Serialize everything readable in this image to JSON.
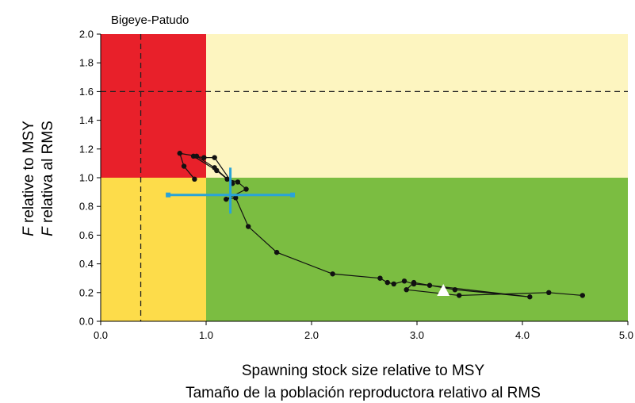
{
  "chart_data": {
    "type": "scatter",
    "title": "Bigeye-Patudo",
    "xlabel": [
      "Spawning stock size relative to MSY",
      "Tamaño de la población reproductora relativo al RMS"
    ],
    "ylabel": [
      {
        "italic": "F",
        "rest": " relative to MSY"
      },
      {
        "italic": "F",
        "rest": " relativa al RMS"
      }
    ],
    "xlim": [
      0,
      5
    ],
    "ylim": [
      0,
      2
    ],
    "x_ticks": [
      0,
      1,
      2,
      3,
      4,
      5
    ],
    "x_tick_labels": [
      "0.0",
      "1.0",
      "2.0",
      "3.0",
      "4.0",
      "5.0"
    ],
    "y_ticks": [
      0,
      0.2,
      0.4,
      0.6,
      0.8,
      1.0,
      1.2,
      1.4,
      1.6,
      1.8,
      2.0
    ],
    "y_tick_labels": [
      "0.0",
      "0.2",
      "0.4",
      "0.6",
      "0.8",
      "1.0",
      "1.2",
      "1.4",
      "1.6",
      "1.8",
      "2.0"
    ],
    "zones": [
      {
        "name": "red",
        "x": [
          0,
          1
        ],
        "y": [
          1,
          2
        ],
        "color": "#e8202a"
      },
      {
        "name": "light-yellow",
        "x": [
          1,
          5
        ],
        "y": [
          1,
          2
        ],
        "color": "#fdf5c0"
      },
      {
        "name": "yellow",
        "x": [
          0,
          1
        ],
        "y": [
          0,
          1
        ],
        "color": "#fddc4a"
      },
      {
        "name": "green",
        "x": [
          1,
          5
        ],
        "y": [
          0,
          1
        ],
        "color": "#7bbd41"
      }
    ],
    "reference_lines": [
      {
        "orientation": "vertical",
        "value": 0.38,
        "style": "dashed"
      },
      {
        "orientation": "horizontal",
        "value": 1.6,
        "style": "dashed"
      }
    ],
    "series": [
      {
        "points": [
          [
            4.57,
            0.18
          ],
          [
            4.25,
            0.2
          ],
          [
            3.4,
            0.18
          ],
          [
            2.9,
            0.22
          ],
          [
            2.97,
            0.27
          ],
          [
            3.36,
            0.22
          ],
          [
            4.07,
            0.17
          ],
          [
            3.12,
            0.25
          ],
          [
            2.97,
            0.26
          ],
          [
            2.88,
            0.28
          ],
          [
            2.78,
            0.26
          ],
          [
            2.72,
            0.27
          ],
          [
            2.65,
            0.3
          ],
          [
            2.2,
            0.33
          ],
          [
            1.67,
            0.48
          ],
          [
            1.4,
            0.66
          ],
          [
            1.28,
            0.86
          ],
          [
            1.19,
            0.85
          ],
          [
            1.38,
            0.92
          ],
          [
            1.3,
            0.97
          ],
          [
            1.2,
            0.99
          ],
          [
            1.1,
            1.05
          ],
          [
            0.88,
            1.15
          ],
          [
            0.98,
            1.14
          ],
          [
            1.08,
            1.14
          ],
          [
            1.25,
            0.96
          ],
          [
            1.08,
            1.07
          ],
          [
            0.91,
            1.15
          ],
          [
            0.75,
            1.17
          ],
          [
            0.79,
            1.08
          ],
          [
            0.89,
            0.99
          ]
        ]
      }
    ],
    "current_estimate": {
      "x": 3.25,
      "y": 0.21
    },
    "confidence_point": {
      "x": 1.23,
      "y": 0.88,
      "x_range": [
        0.64,
        1.82
      ],
      "y_range": [
        0.75,
        1.07
      ]
    },
    "colors": {
      "line": "#111111",
      "ci": "#2aa3d8",
      "triangle": "#ffffff"
    }
  }
}
